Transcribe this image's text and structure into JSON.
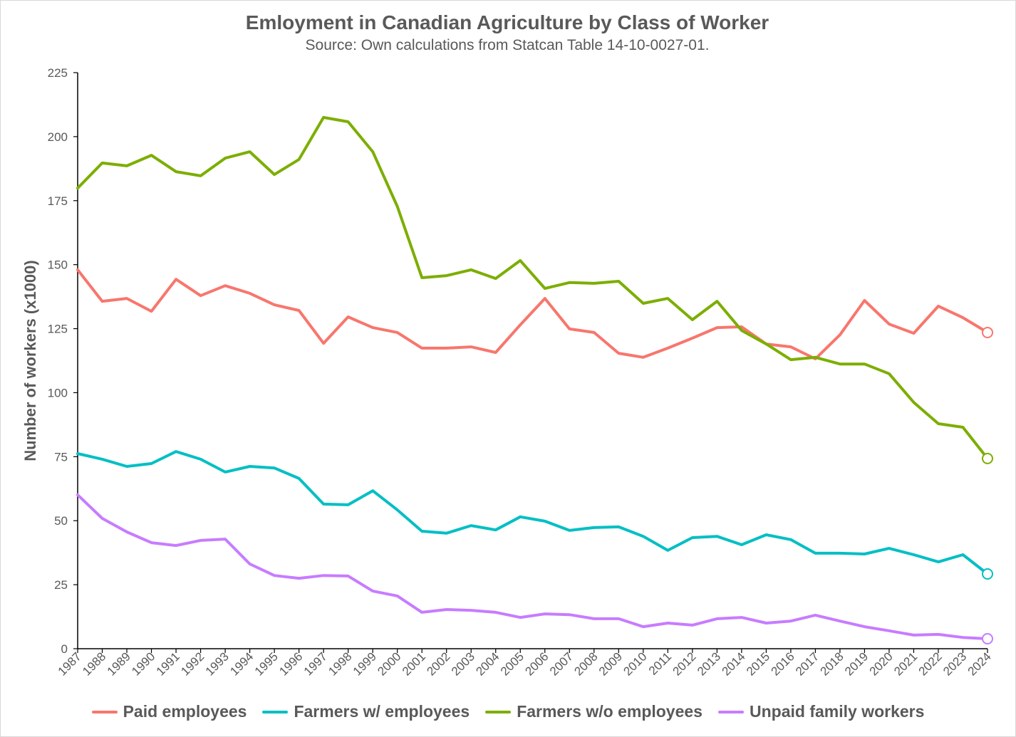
{
  "chart_data": {
    "type": "line",
    "title": "Emloyment in Canadian Agriculture by Class of Worker",
    "subtitle": "Source: Own calculations from Statcan Table 14-10-0027-01.",
    "xlabel": "",
    "ylabel": "Number of workers (x1000)",
    "ylim": [
      0,
      225
    ],
    "yticks": [
      0,
      25,
      50,
      75,
      100,
      125,
      150,
      175,
      200,
      225
    ],
    "x": [
      1987,
      1988,
      1989,
      1990,
      1991,
      1992,
      1993,
      1994,
      1995,
      1996,
      1997,
      1998,
      1999,
      2000,
      2001,
      2002,
      2003,
      2004,
      2005,
      2006,
      2007,
      2008,
      2009,
      2010,
      2011,
      2012,
      2013,
      2014,
      2015,
      2016,
      2017,
      2018,
      2019,
      2020,
      2021,
      2022,
      2023,
      2024
    ],
    "grid": false,
    "legend": "bottom",
    "series": [
      {
        "name": "Paid employees",
        "color": "#F8766D",
        "values": [
          148.0,
          135.7,
          136.8,
          131.8,
          144.3,
          137.9,
          141.8,
          138.8,
          134.3,
          132.1,
          119.3,
          129.6,
          125.4,
          123.5,
          117.4,
          117.4,
          117.9,
          115.7,
          126.5,
          136.8,
          124.9,
          123.5,
          115.4,
          113.8,
          117.4,
          121.3,
          125.4,
          125.7,
          119.0,
          117.9,
          113.2,
          122.6,
          136.0,
          126.8,
          123.2,
          133.8,
          129.3,
          123.5
        ]
      },
      {
        "name": "Farmers w/ employees",
        "color": "#00BFC4",
        "values": [
          76.2,
          74.0,
          71.2,
          72.3,
          77.0,
          74.0,
          69.0,
          71.2,
          70.6,
          66.5,
          56.5,
          56.2,
          61.7,
          54.2,
          45.9,
          45.1,
          48.1,
          46.4,
          51.5,
          49.8,
          46.2,
          47.3,
          47.6,
          43.9,
          38.4,
          43.4,
          43.9,
          40.6,
          44.5,
          42.6,
          37.3,
          37.3,
          37.0,
          39.2,
          36.7,
          33.9,
          36.7,
          29.2
        ]
      },
      {
        "name": "Farmers w/o employees",
        "color": "#7CAE00",
        "values": [
          179.9,
          189.7,
          188.6,
          192.7,
          186.3,
          184.7,
          191.6,
          194.1,
          185.2,
          191.1,
          207.5,
          205.8,
          194.1,
          172.7,
          144.9,
          145.7,
          148.0,
          144.6,
          151.6,
          140.7,
          143.0,
          142.7,
          143.5,
          134.9,
          136.8,
          128.5,
          135.7,
          124.3,
          119.0,
          112.9,
          113.8,
          111.2,
          111.2,
          107.4,
          96.2,
          87.9,
          86.5,
          74.3
        ]
      },
      {
        "name": "Unpaid family workers",
        "color": "#C77CFF",
        "values": [
          60.1,
          50.9,
          45.6,
          41.4,
          40.3,
          42.3,
          42.8,
          33.1,
          28.6,
          27.5,
          28.6,
          28.4,
          22.5,
          20.6,
          14.2,
          15.3,
          15.0,
          14.2,
          12.2,
          13.6,
          13.3,
          11.7,
          11.7,
          8.6,
          10.0,
          9.2,
          11.7,
          12.2,
          10.0,
          10.8,
          13.1,
          10.8,
          8.6,
          7.0,
          5.3,
          5.6,
          4.4,
          3.9
        ]
      }
    ]
  }
}
